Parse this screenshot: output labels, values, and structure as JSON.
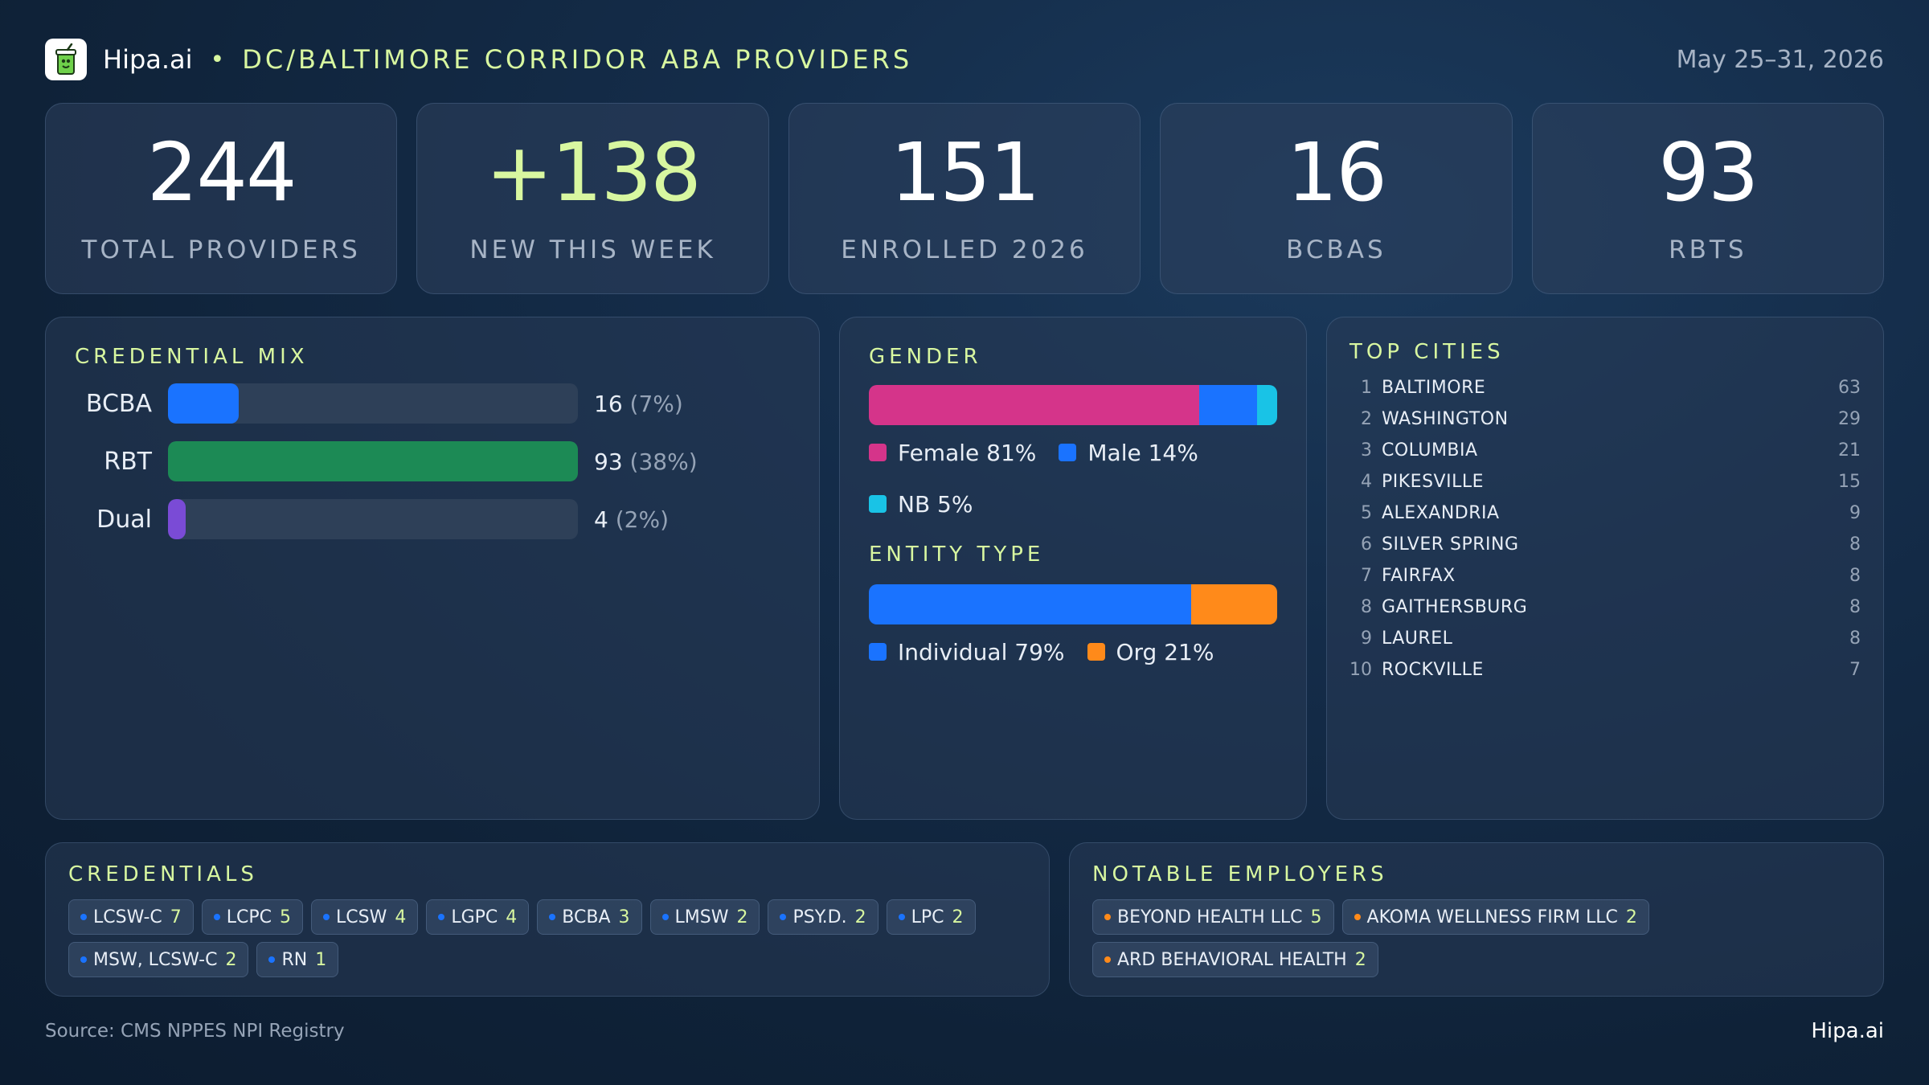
{
  "header": {
    "brand": "Hipa.ai",
    "separator": "•",
    "title": "DC/BALTIMORE CORRIDOR ABA PROVIDERS",
    "date_range": "May 25–31, 2026",
    "logo_icon": "drink-cup-icon"
  },
  "kpis": [
    {
      "value": "244",
      "label": "TOTAL PROVIDERS",
      "accent": false
    },
    {
      "value": "+138",
      "label": "NEW THIS WEEK",
      "accent": true
    },
    {
      "value": "151",
      "label": "ENROLLED 2026",
      "accent": false
    },
    {
      "value": "16",
      "label": "BCBAS",
      "accent": false
    },
    {
      "value": "93",
      "label": "RBTS",
      "accent": false
    }
  ],
  "colors": {
    "accent_green": "#d8f7a0",
    "blue": "#1a73ff",
    "green": "#1c8a55",
    "purple": "#7a4bd6",
    "pink": "#d5348a",
    "cyan": "#19c3e6",
    "orange": "#ff8a1a"
  },
  "credential_mix": {
    "title": "CREDENTIAL MIX",
    "max": 93,
    "rows": [
      {
        "label": "BCBA",
        "count": 16,
        "value_text": "16",
        "pct_text": "(7%)",
        "color": "#1a73ff"
      },
      {
        "label": "RBT",
        "count": 93,
        "value_text": "93",
        "pct_text": "(38%)",
        "color": "#1c8a55"
      },
      {
        "label": "Dual",
        "count": 4,
        "value_text": "4",
        "pct_text": "(2%)",
        "color": "#7a4bd6"
      }
    ]
  },
  "gender": {
    "title": "GENDER",
    "segments": [
      {
        "label": "Female 81%",
        "share": 81,
        "color": "#d5348a"
      },
      {
        "label": "Male 14%",
        "share": 14,
        "color": "#1a73ff"
      },
      {
        "label": "NB 5%",
        "share": 5,
        "color": "#19c3e6"
      }
    ]
  },
  "entity_type": {
    "title": "ENTITY TYPE",
    "segments": [
      {
        "label": "Individual 79%",
        "share": 79,
        "color": "#1a73ff"
      },
      {
        "label": "Org 21%",
        "share": 21,
        "color": "#ff8a1a"
      }
    ]
  },
  "top_cities": {
    "title": "TOP CITIES",
    "rows": [
      {
        "rank": "1",
        "name": "BALTIMORE",
        "count": "63"
      },
      {
        "rank": "2",
        "name": "WASHINGTON",
        "count": "29"
      },
      {
        "rank": "3",
        "name": "COLUMBIA",
        "count": "21"
      },
      {
        "rank": "4",
        "name": "PIKESVILLE",
        "count": "15"
      },
      {
        "rank": "5",
        "name": "ALEXANDRIA",
        "count": "9"
      },
      {
        "rank": "6",
        "name": "SILVER SPRING",
        "count": "8"
      },
      {
        "rank": "7",
        "name": "FAIRFAX",
        "count": "8"
      },
      {
        "rank": "8",
        "name": "GAITHERSBURG",
        "count": "8"
      },
      {
        "rank": "9",
        "name": "LAUREL",
        "count": "8"
      },
      {
        "rank": "10",
        "name": "ROCKVILLE",
        "count": "7"
      }
    ]
  },
  "credentials": {
    "title": "CREDENTIALS",
    "dot_color": "#1a73ff",
    "items": [
      {
        "name": "LCSW-C",
        "count": "7"
      },
      {
        "name": "LCPC",
        "count": "5"
      },
      {
        "name": "LCSW",
        "count": "4"
      },
      {
        "name": "LGPC",
        "count": "4"
      },
      {
        "name": "BCBA",
        "count": "3"
      },
      {
        "name": "LMSW",
        "count": "2"
      },
      {
        "name": "PSY.D.",
        "count": "2"
      },
      {
        "name": "LPC",
        "count": "2"
      },
      {
        "name": "MSW, LCSW-C",
        "count": "2"
      },
      {
        "name": "RN",
        "count": "1"
      }
    ]
  },
  "employers": {
    "title": "NOTABLE EMPLOYERS",
    "dot_color": "#ff8a1a",
    "items": [
      {
        "name": "BEYOND HEALTH LLC",
        "count": "5"
      },
      {
        "name": "AKOMA WELLNESS FIRM LLC",
        "count": "2"
      },
      {
        "name": "ARD BEHAVIORAL HEALTH",
        "count": "2"
      }
    ]
  },
  "footer": {
    "source": "Source: CMS NPPES NPI Registry",
    "brand": "Hipa.ai"
  },
  "chart_data": [
    {
      "type": "bar",
      "title": "CREDENTIAL MIX",
      "categories": [
        "BCBA",
        "RBT",
        "Dual"
      ],
      "values": [
        16,
        93,
        4
      ],
      "labels": [
        "16 (7%)",
        "93 (38%)",
        "4 (2%)"
      ]
    },
    {
      "type": "bar",
      "title": "GENDER",
      "categories": [
        "Female",
        "Male",
        "NB"
      ],
      "values": [
        81,
        14,
        5
      ]
    },
    {
      "type": "bar",
      "title": "ENTITY TYPE",
      "categories": [
        "Individual",
        "Org"
      ],
      "values": [
        79,
        21
      ]
    },
    {
      "type": "table",
      "title": "TOP CITIES",
      "categories": [
        "BALTIMORE",
        "WASHINGTON",
        "COLUMBIA",
        "PIKESVILLE",
        "ALEXANDRIA",
        "SILVER SPRING",
        "FAIRFAX",
        "GAITHERSBURG",
        "LAUREL",
        "ROCKVILLE"
      ],
      "values": [
        63,
        29,
        21,
        15,
        9,
        8,
        8,
        8,
        8,
        7
      ]
    }
  ]
}
